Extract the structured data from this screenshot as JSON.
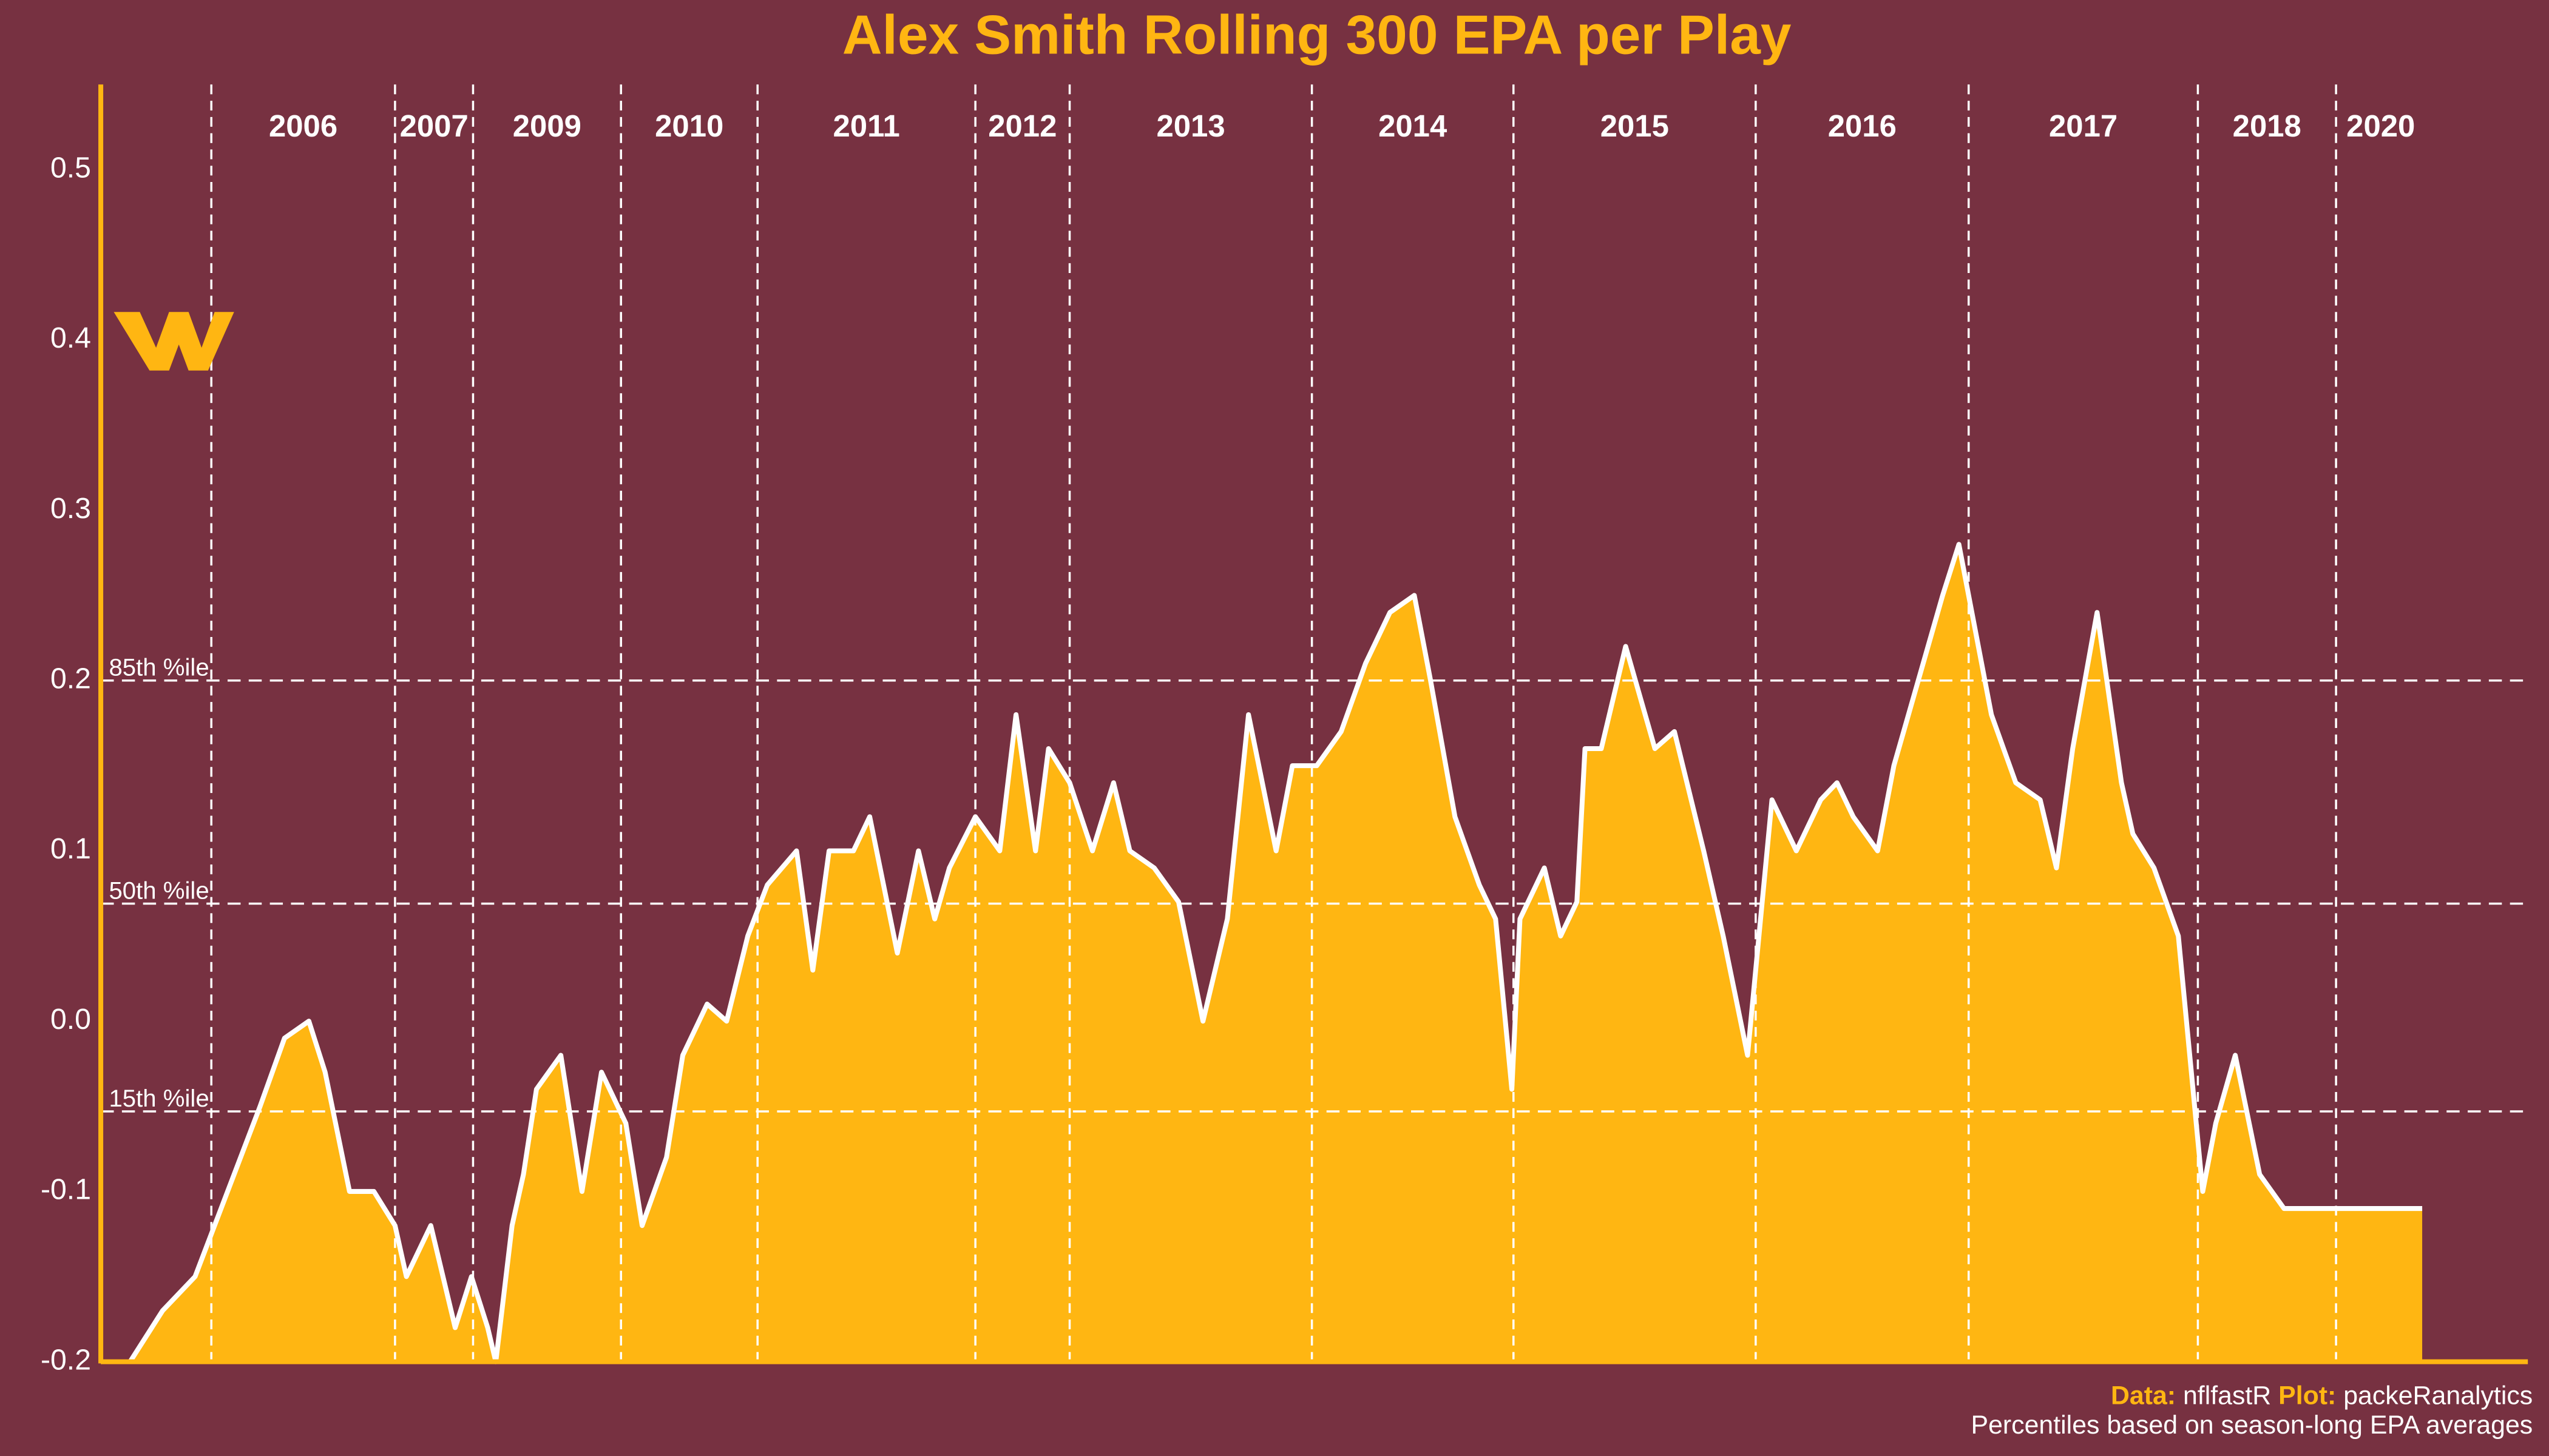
{
  "chart_data": {
    "type": "area",
    "title": "Alex Smith Rolling 300 EPA per Play",
    "x": [
      18,
      38,
      58,
      78,
      98,
      113,
      128,
      138,
      153,
      168,
      181,
      188,
      203,
      218,
      228,
      238,
      243,
      253,
      260,
      268,
      283,
      296,
      308,
      323,
      333,
      348,
      358,
      373,
      385,
      398,
      410,
      428,
      438,
      448,
      463,
      473,
      490,
      503,
      513,
      522,
      538,
      553,
      563,
      575,
      583,
      596,
      610,
      623,
      633,
      648,
      663,
      678,
      693,
      706,
      723,
      733,
      748,
      763,
      778,
      793,
      808,
      818,
      833,
      848,
      858,
      868,
      873,
      888,
      898,
      908,
      913,
      923,
      938,
      956,
      968,
      986,
      998,
      1013,
      1028,
      1043,
      1058,
      1068,
      1078,
      1093,
      1103,
      1118,
      1133,
      1143,
      1163,
      1178,
      1193,
      1203,
      1213,
      1228,
      1243,
      1250,
      1263,
      1278,
      1293,
      1301,
      1313,
      1328,
      1343,
      1358,
      1370,
      1378,
      1388,
      1398,
      1410,
      1415,
      1428
    ],
    "values": [
      -0.2,
      -0.17,
      -0.15,
      -0.1,
      -0.05,
      -0.01,
      0.0,
      -0.03,
      -0.1,
      -0.1,
      -0.12,
      -0.15,
      -0.12,
      -0.18,
      -0.15,
      -0.18,
      -0.2,
      -0.12,
      -0.09,
      -0.04,
      -0.02,
      -0.1,
      -0.03,
      -0.06,
      -0.12,
      -0.08,
      -0.02,
      0.01,
      0.0,
      0.05,
      0.08,
      0.1,
      0.03,
      0.1,
      0.1,
      0.12,
      0.04,
      0.1,
      0.06,
      0.09,
      0.12,
      0.1,
      0.18,
      0.1,
      0.16,
      0.14,
      0.1,
      0.14,
      0.1,
      0.09,
      0.07,
      0.0,
      0.06,
      0.18,
      0.1,
      0.15,
      0.15,
      0.17,
      0.21,
      0.24,
      0.25,
      0.2,
      0.12,
      0.08,
      0.06,
      -0.04,
      0.06,
      0.09,
      0.05,
      0.07,
      0.16,
      0.16,
      0.22,
      0.16,
      0.17,
      0.1,
      0.05,
      -0.02,
      0.13,
      0.1,
      0.13,
      0.14,
      0.12,
      0.1,
      0.15,
      0.2,
      0.25,
      0.28,
      0.18,
      0.14,
      0.13,
      0.09,
      0.16,
      0.24,
      0.14,
      0.11,
      0.09,
      0.05,
      -0.1,
      -0.06,
      -0.02,
      -0.09,
      -0.11,
      -0.11,
      -0.11,
      -0.11,
      -0.11,
      -0.11,
      -0.11,
      -0.11,
      -0.11
    ],
    "color": "#FFB612",
    "xlim": [
      0,
      1493
    ],
    "ylim": [
      -0.2,
      0.55
    ],
    "yticks": [
      -0.2,
      -0.1,
      {
        "value": 0,
        "label": "0.0"
      },
      0.1,
      0.2,
      0.3,
      0.4,
      0.5
    ],
    "seasons": [
      {
        "label": "2006",
        "start": 68,
        "end": 181
      },
      {
        "label": "2007",
        "start": 181,
        "end": 229
      },
      {
        "label": "2009",
        "start": 229,
        "end": 320
      },
      {
        "label": "2010",
        "start": 320,
        "end": 404
      },
      {
        "label": "2011",
        "start": 404,
        "end": 538
      },
      {
        "label": "2012",
        "start": 538,
        "end": 596
      },
      {
        "label": "2013",
        "start": 596,
        "end": 745
      },
      {
        "label": "2014",
        "start": 745,
        "end": 869
      },
      {
        "label": "2015",
        "start": 869,
        "end": 1018
      },
      {
        "label": "2016",
        "start": 1018,
        "end": 1149
      },
      {
        "label": "2017",
        "start": 1149,
        "end": 1290
      },
      {
        "label": "2018",
        "start": 1290,
        "end": 1375
      },
      {
        "label": "2020",
        "start": 1375,
        "end": 1430
      }
    ],
    "percentiles": [
      {
        "label": "85th %ile",
        "value": 0.2
      },
      {
        "label": "50th %ile",
        "value": 0.069
      },
      {
        "label": "15th %ile",
        "value": -0.053
      }
    ],
    "caption": {
      "data_label": "Data:",
      "data_source": "nflfastR",
      "plot_label": "Plot:",
      "plot_author": "packeRanalytics",
      "note": "Percentiles based on season-long EPA averages"
    }
  }
}
